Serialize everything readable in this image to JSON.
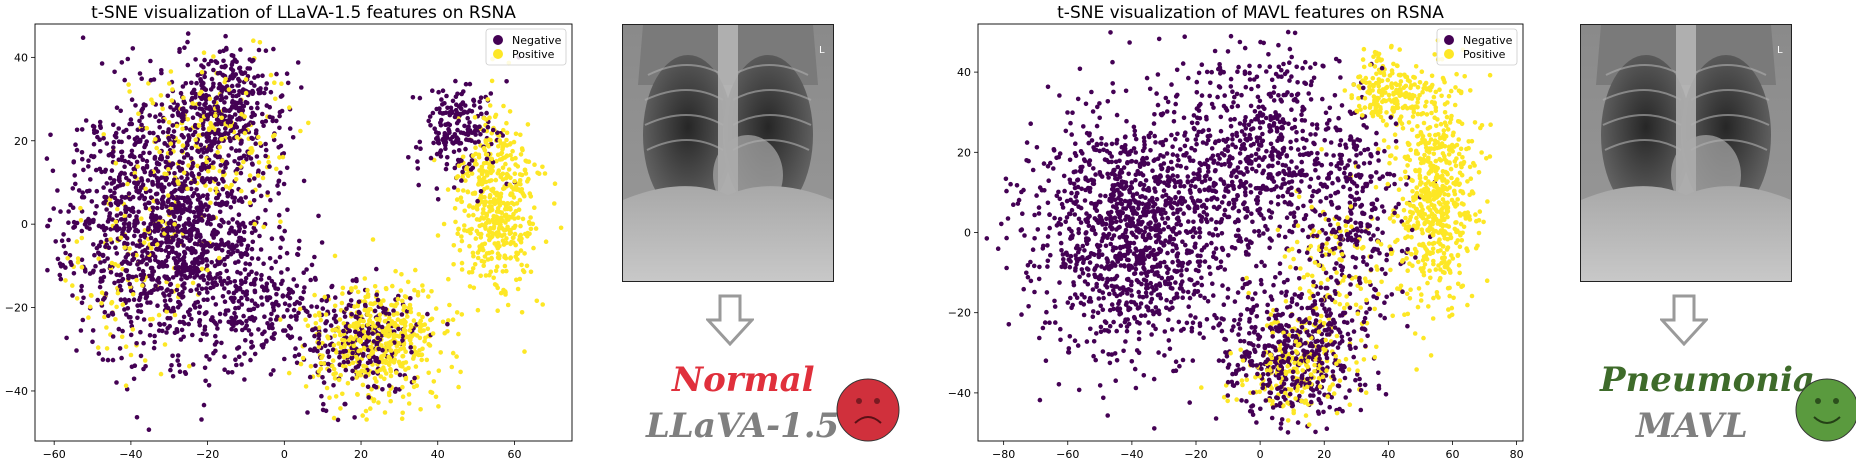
{
  "chart_data": [
    {
      "type": "scatter",
      "title": "t-SNE visualization of LLaVA-1.5 features on RSNA",
      "xlabel": "",
      "ylabel": "",
      "xlim": [
        -65,
        75
      ],
      "ylim": [
        -52,
        48
      ],
      "xticks": [
        -60,
        -40,
        -20,
        0,
        20,
        40,
        60
      ],
      "yticks": [
        -40,
        -20,
        0,
        20,
        40
      ],
      "grid": false,
      "legend_placement": "top-right",
      "series": [
        {
          "name": "Negative",
          "color": "#440154",
          "clusters": [
            {
              "center": [
                -30,
                0
              ],
              "spread": [
                18,
                22
              ],
              "count": 1500
            },
            {
              "center": [
                -15,
                28
              ],
              "spread": [
                10,
                10
              ],
              "count": 350
            },
            {
              "center": [
                20,
                -28
              ],
              "spread": [
                10,
                10
              ],
              "count": 250
            },
            {
              "center": [
                45,
                22
              ],
              "spread": [
                8,
                9
              ],
              "count": 200
            },
            {
              "center": [
                -5,
                -20
              ],
              "spread": [
                12,
                10
              ],
              "count": 200
            }
          ]
        },
        {
          "name": "Positive",
          "color": "#fde725",
          "clusters": [
            {
              "center": [
                25,
                -28
              ],
              "spread": [
                12,
                10
              ],
              "count": 500
            },
            {
              "center": [
                55,
                5
              ],
              "spread": [
                7,
                15
              ],
              "count": 500
            },
            {
              "center": [
                -20,
                20
              ],
              "spread": [
                15,
                15
              ],
              "count": 200
            },
            {
              "center": [
                -40,
                -10
              ],
              "spread": [
                12,
                15
              ],
              "count": 120
            }
          ]
        }
      ]
    },
    {
      "type": "scatter",
      "title": "t-SNE visualization of MAVL features on RSNA",
      "xlabel": "",
      "ylabel": "",
      "xlim": [
        -88,
        82
      ],
      "ylim": [
        -52,
        52
      ],
      "xticks": [
        -80,
        -60,
        -40,
        -20,
        0,
        20,
        40,
        60,
        80
      ],
      "yticks": [
        -40,
        -20,
        0,
        20,
        40
      ],
      "grid": false,
      "legend_placement": "top-right",
      "series": [
        {
          "name": "Negative",
          "color": "#440154",
          "clusters": [
            {
              "center": [
                -40,
                0
              ],
              "spread": [
                22,
                22
              ],
              "count": 1300
            },
            {
              "center": [
                0,
                20
              ],
              "spread": [
                18,
                18
              ],
              "count": 600
            },
            {
              "center": [
                10,
                -30
              ],
              "spread": [
                15,
                12
              ],
              "count": 500
            },
            {
              "center": [
                30,
                5
              ],
              "spread": [
                12,
                20
              ],
              "count": 300
            }
          ]
        },
        {
          "name": "Positive",
          "color": "#fde725",
          "clusters": [
            {
              "center": [
                55,
                10
              ],
              "spread": [
                9,
                20
              ],
              "count": 600
            },
            {
              "center": [
                40,
                35
              ],
              "spread": [
                8,
                7
              ],
              "count": 200
            },
            {
              "center": [
                10,
                -35
              ],
              "spread": [
                12,
                8
              ],
              "count": 200
            },
            {
              "center": [
                25,
                -10
              ],
              "spread": [
                15,
                15
              ],
              "count": 150
            }
          ]
        }
      ]
    }
  ],
  "left_result": {
    "prediction": "Normal",
    "prediction_color": "#e0303c",
    "model": "LLaVA-1.5",
    "face": "sad-face",
    "face_color": "#d0303c"
  },
  "right_result": {
    "prediction": "Pneumonia",
    "prediction_color": "#3e6b2a",
    "model": "MAVL",
    "face": "smiley-face",
    "face_color": "#5a9a3e"
  },
  "xray_marker": "L",
  "arrow_icon": "down-arrow-icon"
}
